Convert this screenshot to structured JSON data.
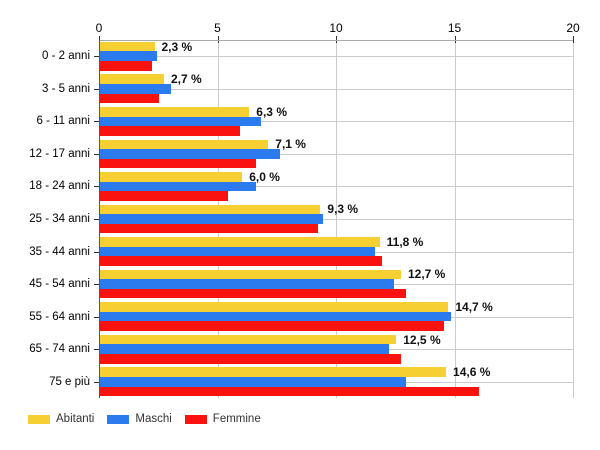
{
  "chart_data": {
    "type": "bar",
    "orientation": "horizontal",
    "title": "",
    "categories": [
      "0 - 2 anni",
      "3 - 5 anni",
      "6 - 11 anni",
      "12 - 17 anni",
      "18 - 24 anni",
      "25 - 34 anni",
      "35 - 44 anni",
      "45 - 54 anni",
      "55 - 64 anni",
      "65 - 74 anni",
      "75 e più"
    ],
    "series": [
      {
        "name": "Abitanti",
        "color": "#F6D032",
        "values": [
          2.3,
          2.7,
          6.3,
          7.1,
          6.0,
          9.3,
          11.8,
          12.7,
          14.7,
          12.5,
          14.6
        ]
      },
      {
        "name": "Maschi",
        "color": "#2B7AEE",
        "values": [
          2.4,
          3.0,
          6.8,
          7.6,
          6.6,
          9.4,
          11.6,
          12.4,
          14.8,
          12.2,
          12.9
        ]
      },
      {
        "name": "Femmine",
        "color": "#FA120E",
        "values": [
          2.2,
          2.5,
          5.9,
          6.6,
          5.4,
          9.2,
          11.9,
          12.9,
          14.5,
          12.7,
          16.0
        ]
      }
    ],
    "bar_labels": {
      "labeled_series": "Abitanti",
      "values": [
        "2,3 %",
        "2,7 %",
        "6,3 %",
        "7,1 %",
        "6,0 %",
        "9,3 %",
        "11,8 %",
        "12,7 %",
        "14,7 %",
        "12,5 %",
        "14,6 %"
      ]
    },
    "xaxis": {
      "min": 0,
      "max": 20,
      "ticks": [
        "0",
        "5",
        "10",
        "15",
        "20"
      ],
      "position": "top"
    },
    "legend": {
      "position": "bottom-left",
      "entries": [
        "Abitanti",
        "Maschi",
        "Femmine"
      ]
    },
    "grid": true
  },
  "colors": {
    "gridline": "#CCCCCC",
    "top_axis_line": "#AAAAAA",
    "left_axis_line": "#555555",
    "tick_mark": "#333333",
    "text": "#000000"
  }
}
